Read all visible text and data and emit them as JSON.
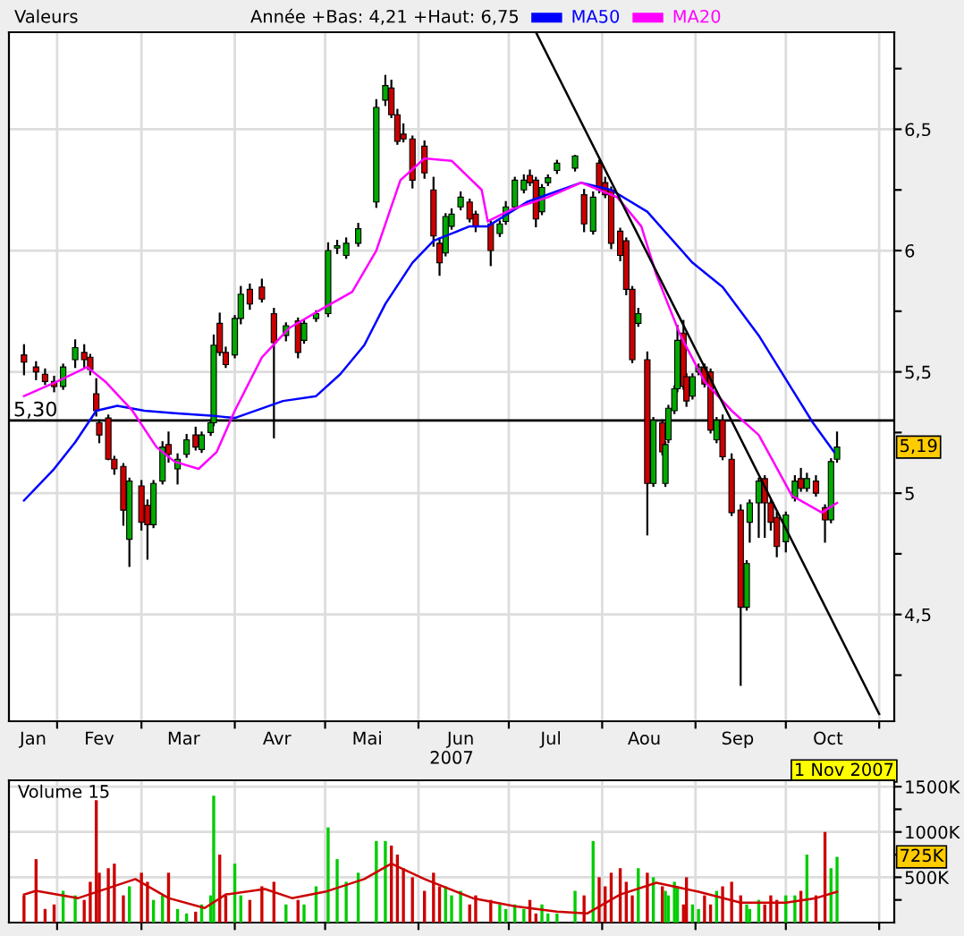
{
  "chart_data": [
    {
      "type": "candlestick",
      "title": "Valeurs",
      "subtitle": "Année +Bas: 4,21 +Haut: 6,75",
      "xlabel": "2007",
      "x": [
        "2007-01-21",
        "2007-01-25",
        "2007-01-28",
        "2007-01-31",
        "2007-02-03",
        "2007-02-07",
        "2007-02-10",
        "2007-02-12",
        "2007-02-14",
        "2007-02-15",
        "2007-02-18",
        "2007-02-20",
        "2007-02-23",
        "2007-02-25",
        "2007-03-01",
        "2007-03-03",
        "2007-03-05",
        "2007-03-08",
        "2007-03-10",
        "2007-03-13",
        "2007-03-16",
        "2007-03-19",
        "2007-03-21",
        "2007-03-24",
        "2007-03-25",
        "2007-03-27",
        "2007-03-29",
        "2007-04-01",
        "2007-04-03",
        "2007-04-06",
        "2007-04-10",
        "2007-04-14",
        "2007-04-18",
        "2007-04-22",
        "2007-04-24",
        "2007-04-28",
        "2007-05-02",
        "2007-05-05",
        "2007-05-08",
        "2007-05-12",
        "2007-05-18",
        "2007-05-21",
        "2007-05-23",
        "2007-05-25",
        "2007-05-27",
        "2007-05-30",
        "2007-06-03",
        "2007-06-06",
        "2007-06-08",
        "2007-06-10",
        "2007-06-12",
        "2007-06-15",
        "2007-06-18",
        "2007-06-20",
        "2007-06-25",
        "2007-06-28",
        "2007-06-30",
        "2007-07-03",
        "2007-07-06",
        "2007-07-08",
        "2007-07-10",
        "2007-07-12",
        "2007-07-14",
        "2007-07-17",
        "2007-07-23",
        "2007-07-26",
        "2007-07-29",
        "2007-07-31",
        "2007-08-02",
        "2007-08-04",
        "2007-08-07",
        "2007-08-09",
        "2007-08-11",
        "2007-08-13",
        "2007-08-16",
        "2007-08-18",
        "2007-08-21",
        "2007-08-22",
        "2007-08-23",
        "2007-08-25",
        "2007-08-26",
        "2007-08-28",
        "2007-08-29",
        "2007-08-31",
        "2007-09-02",
        "2007-09-04",
        "2007-09-06",
        "2007-09-08",
        "2007-09-10",
        "2007-09-13",
        "2007-09-16",
        "2007-09-18",
        "2007-09-19",
        "2007-09-22",
        "2007-09-24",
        "2007-09-26",
        "2007-09-28",
        "2007-10-01",
        "2007-10-04",
        "2007-10-06",
        "2007-10-08",
        "2007-10-11",
        "2007-10-14",
        "2007-10-16",
        "2007-10-18"
      ],
      "ohlc": [
        [
          5.57,
          5.61,
          5.49,
          5.54
        ],
        [
          5.52,
          5.54,
          5.47,
          5.5
        ],
        [
          5.49,
          5.51,
          5.45,
          5.46
        ],
        [
          5.46,
          5.48,
          5.42,
          5.44
        ],
        [
          5.44,
          5.53,
          5.43,
          5.52
        ],
        [
          5.55,
          5.63,
          5.52,
          5.6
        ],
        [
          5.58,
          5.61,
          5.52,
          5.55
        ],
        [
          5.56,
          5.57,
          5.49,
          5.51
        ],
        [
          5.41,
          5.47,
          5.32,
          5.34
        ],
        [
          5.29,
          5.3,
          5.21,
          5.24
        ],
        [
          5.31,
          5.32,
          5.14,
          5.14
        ],
        [
          5.14,
          5.15,
          5.08,
          5.1
        ],
        [
          5.11,
          5.12,
          4.87,
          4.93
        ],
        [
          4.81,
          5.06,
          4.7,
          5.05
        ],
        [
          5.03,
          5.05,
          4.85,
          4.88
        ],
        [
          4.95,
          4.97,
          4.73,
          4.87
        ],
        [
          4.87,
          5.05,
          4.86,
          5.04
        ],
        [
          5.05,
          5.21,
          5.04,
          5.19
        ],
        [
          5.2,
          5.25,
          5.13,
          5.16
        ],
        [
          5.1,
          5.16,
          5.04,
          5.14
        ],
        [
          5.16,
          5.24,
          5.15,
          5.22
        ],
        [
          5.24,
          5.27,
          5.18,
          5.19
        ],
        [
          5.18,
          5.25,
          5.17,
          5.24
        ],
        [
          5.25,
          5.3,
          5.24,
          5.29
        ],
        [
          5.29,
          5.65,
          5.28,
          5.61
        ],
        [
          5.7,
          5.74,
          5.57,
          5.58
        ],
        [
          5.58,
          5.6,
          5.52,
          5.53
        ],
        [
          5.57,
          5.73,
          5.56,
          5.72
        ],
        [
          5.72,
          5.85,
          5.7,
          5.82
        ],
        [
          5.84,
          5.86,
          5.76,
          5.78
        ],
        [
          5.85,
          5.88,
          5.79,
          5.8
        ],
        [
          5.74,
          5.76,
          5.23,
          5.62
        ],
        [
          5.65,
          5.7,
          5.63,
          5.69
        ],
        [
          5.71,
          5.72,
          5.56,
          5.58
        ],
        [
          5.63,
          5.71,
          5.62,
          5.7
        ],
        [
          5.72,
          5.75,
          5.71,
          5.74
        ],
        [
          5.74,
          6.03,
          5.73,
          6.0
        ],
        [
          6.01,
          6.04,
          5.99,
          6.02
        ],
        [
          5.98,
          6.05,
          5.97,
          6.03
        ],
        [
          6.03,
          6.11,
          6.02,
          6.09
        ],
        [
          6.2,
          6.62,
          6.18,
          6.59
        ],
        [
          6.62,
          6.72,
          6.6,
          6.68
        ],
        [
          6.67,
          6.7,
          6.55,
          6.56
        ],
        [
          6.56,
          6.58,
          6.44,
          6.45
        ],
        [
          6.48,
          6.52,
          6.45,
          6.46
        ],
        [
          6.46,
          6.47,
          6.26,
          6.29
        ],
        [
          6.43,
          6.45,
          6.3,
          6.32
        ],
        [
          6.25,
          6.3,
          6.02,
          6.06
        ],
        [
          6.03,
          6.05,
          5.9,
          5.95
        ],
        [
          5.99,
          6.15,
          5.98,
          6.14
        ],
        [
          6.1,
          6.17,
          6.09,
          6.15
        ],
        [
          6.18,
          6.24,
          6.17,
          6.22
        ],
        [
          6.2,
          6.21,
          6.12,
          6.13
        ],
        [
          6.15,
          6.16,
          6.08,
          6.1
        ],
        [
          6.11,
          6.12,
          5.94,
          6.0
        ],
        [
          6.07,
          6.12,
          6.06,
          6.11
        ],
        [
          6.12,
          6.2,
          6.11,
          6.18
        ],
        [
          6.18,
          6.3,
          6.17,
          6.29
        ],
        [
          6.25,
          6.31,
          6.24,
          6.29
        ],
        [
          6.31,
          6.33,
          6.27,
          6.28
        ],
        [
          6.29,
          6.3,
          6.1,
          6.13
        ],
        [
          6.16,
          6.27,
          6.15,
          6.26
        ],
        [
          6.28,
          6.31,
          6.27,
          6.3
        ],
        [
          6.33,
          6.37,
          6.32,
          6.36
        ],
        [
          6.34,
          6.39,
          6.33,
          6.39
        ],
        [
          6.23,
          6.25,
          6.08,
          6.11
        ],
        [
          6.08,
          6.24,
          6.07,
          6.22
        ],
        [
          6.36,
          6.37,
          6.24,
          6.25
        ],
        [
          6.28,
          6.3,
          6.22,
          6.23
        ],
        [
          6.25,
          6.26,
          6.01,
          6.03
        ],
        [
          6.08,
          6.09,
          5.96,
          5.98
        ],
        [
          6.04,
          6.05,
          5.82,
          5.84
        ],
        [
          5.84,
          5.85,
          5.54,
          5.55
        ],
        [
          5.7,
          5.76,
          5.69,
          5.74
        ],
        [
          5.55,
          5.58,
          4.83,
          5.04
        ],
        [
          5.04,
          5.31,
          5.03,
          5.3
        ],
        [
          5.29,
          5.3,
          5.16,
          5.17
        ],
        [
          5.04,
          5.21,
          5.03,
          5.2
        ],
        [
          5.22,
          5.36,
          5.21,
          5.35
        ],
        [
          5.34,
          5.44,
          5.33,
          5.43
        ],
        [
          5.43,
          5.69,
          5.42,
          5.63
        ],
        [
          5.66,
          5.71,
          5.43,
          5.44
        ],
        [
          5.48,
          5.49,
          5.36,
          5.38
        ],
        [
          5.4,
          5.49,
          5.39,
          5.48
        ],
        [
          5.5,
          5.53,
          5.49,
          5.52
        ],
        [
          5.52,
          5.53,
          5.44,
          5.45
        ],
        [
          5.5,
          5.51,
          5.25,
          5.26
        ],
        [
          5.22,
          5.31,
          5.21,
          5.3
        ],
        [
          5.3,
          5.32,
          5.14,
          5.15
        ],
        [
          5.14,
          5.16,
          4.91,
          4.92
        ],
        [
          4.93,
          4.95,
          4.21,
          4.53
        ],
        [
          4.53,
          4.72,
          4.52,
          4.71
        ],
        [
          4.88,
          4.97,
          4.8,
          4.96
        ],
        [
          4.96,
          5.06,
          4.82,
          5.05
        ],
        [
          5.06,
          5.07,
          4.82,
          4.96
        ],
        [
          4.96,
          4.97,
          4.85,
          4.88
        ],
        [
          4.9,
          4.92,
          4.74,
          4.78
        ],
        [
          4.8,
          4.92,
          4.76,
          4.91
        ],
        [
          4.98,
          5.07,
          4.97,
          5.05
        ],
        [
          5.06,
          5.1,
          5.01,
          5.02
        ],
        [
          5.02,
          5.08,
          5.01,
          5.06
        ],
        [
          5.05,
          5.07,
          4.99,
          5.0
        ],
        [
          4.94,
          4.95,
          4.8,
          4.89
        ],
        [
          4.89,
          5.14,
          4.88,
          5.13
        ],
        [
          5.14,
          5.25,
          5.13,
          5.19
        ]
      ],
      "colors": [
        "#cc0000",
        "#cc0000",
        "#cc0000",
        "#cc0000",
        "#00aa00",
        "#00aa00",
        "#cc0000",
        "#cc0000",
        "#cc0000",
        "#cc0000",
        "#cc0000",
        "#cc0000",
        "#cc0000",
        "#00aa00",
        "#cc0000",
        "#cc0000",
        "#00aa00",
        "#00aa00",
        "#cc0000",
        "#00aa00",
        "#00aa00",
        "#cc0000",
        "#00aa00",
        "#00aa00",
        "#00aa00",
        "#cc0000",
        "#cc0000",
        "#00aa00",
        "#00aa00",
        "#cc0000",
        "#cc0000",
        "#cc0000",
        "#00aa00",
        "#cc0000",
        "#00aa00",
        "#00aa00",
        "#00aa00",
        "#00aa00",
        "#00aa00",
        "#00aa00",
        "#00aa00",
        "#00aa00",
        "#cc0000",
        "#cc0000",
        "#cc0000",
        "#cc0000",
        "#cc0000",
        "#cc0000",
        "#cc0000",
        "#00aa00",
        "#00aa00",
        "#00aa00",
        "#cc0000",
        "#cc0000",
        "#cc0000",
        "#00aa00",
        "#00aa00",
        "#00aa00",
        "#00aa00",
        "#cc0000",
        "#cc0000",
        "#00aa00",
        "#00aa00",
        "#00aa00",
        "#00aa00",
        "#cc0000",
        "#00aa00",
        "#cc0000",
        "#cc0000",
        "#cc0000",
        "#cc0000",
        "#cc0000",
        "#cc0000",
        "#00aa00",
        "#cc0000",
        "#00aa00",
        "#cc0000",
        "#00aa00",
        "#00aa00",
        "#00aa00",
        "#00aa00",
        "#cc0000",
        "#cc0000",
        "#00aa00",
        "#00aa00",
        "#cc0000",
        "#cc0000",
        "#00aa00",
        "#cc0000",
        "#cc0000",
        "#cc0000",
        "#00aa00",
        "#00aa00",
        "#00aa00",
        "#cc0000",
        "#cc0000",
        "#cc0000",
        "#00aa00",
        "#00aa00",
        "#cc0000",
        "#00aa00",
        "#cc0000",
        "#cc0000",
        "#00aa00",
        "#00aa00"
      ],
      "series": [
        {
          "name": "MA50",
          "type": "line",
          "color": "#0000ff",
          "x": [
            "2007-01-21",
            "2007-01-31",
            "2007-02-07",
            "2007-02-14",
            "2007-02-21",
            "2007-03-02",
            "2007-03-12",
            "2007-03-24",
            "2007-04-01",
            "2007-04-17",
            "2007-04-28",
            "2007-05-06",
            "2007-05-14",
            "2007-05-21",
            "2007-05-30",
            "2007-06-06",
            "2007-06-18",
            "2007-06-24",
            "2007-07-07",
            "2007-07-25",
            "2007-08-04",
            "2007-08-16",
            "2007-08-31",
            "2007-09-10",
            "2007-09-22",
            "2007-10-03",
            "2007-10-10",
            "2007-10-17"
          ],
          "values": [
            4.97,
            5.1,
            5.21,
            5.34,
            5.36,
            5.34,
            5.33,
            5.32,
            5.31,
            5.38,
            5.4,
            5.49,
            5.61,
            5.78,
            5.95,
            6.04,
            6.1,
            6.1,
            6.2,
            6.28,
            6.25,
            6.16,
            5.95,
            5.85,
            5.65,
            5.43,
            5.29,
            5.17
          ]
        },
        {
          "name": "MA20",
          "type": "line",
          "color": "#ff00ff",
          "x": [
            "2007-01-21",
            "2007-02-01",
            "2007-02-11",
            "2007-02-17",
            "2007-02-26",
            "2007-03-06",
            "2007-03-12",
            "2007-03-20",
            "2007-03-26",
            "2007-04-01",
            "2007-04-10",
            "2007-04-19",
            "2007-04-30",
            "2007-05-10",
            "2007-05-18",
            "2007-05-26",
            "2007-06-03",
            "2007-06-12",
            "2007-06-22",
            "2007-06-24",
            "2007-07-02",
            "2007-07-14",
            "2007-07-25",
            "2007-08-06",
            "2007-08-14",
            "2007-08-19",
            "2007-08-27",
            "2007-09-04",
            "2007-09-13",
            "2007-09-22",
            "2007-10-03",
            "2007-10-13",
            "2007-10-18"
          ],
          "values": [
            5.4,
            5.46,
            5.52,
            5.46,
            5.34,
            5.19,
            5.13,
            5.1,
            5.17,
            5.34,
            5.56,
            5.68,
            5.76,
            5.83,
            6.0,
            6.29,
            6.38,
            6.37,
            6.25,
            6.12,
            6.17,
            6.22,
            6.28,
            6.22,
            6.1,
            5.9,
            5.65,
            5.46,
            5.34,
            5.24,
            4.99,
            4.92,
            4.96
          ]
        },
        {
          "type": "line",
          "color": "#000000",
          "x": [
            "2007-07-10",
            "2007-11-01"
          ],
          "values": [
            6.9,
            4.09
          ]
        }
      ],
      "ref_lines": [
        {
          "axis": "y",
          "value": 5.3,
          "label": "5,30",
          "color": "#000000"
        }
      ],
      "annotations": [
        {
          "text": "5,19",
          "y": 5.19
        },
        "1 Nov 2007"
      ],
      "xlim": [
        "2007-01-16",
        "2007-11-06"
      ],
      "xticks": [
        {
          "value": "2007-02-01",
          "label": null
        },
        {
          "value": "2007-03-01",
          "label": null
        },
        {
          "value": "2007-04-01",
          "label": null
        },
        {
          "value": "2007-05-01",
          "label": null
        },
        {
          "value": "2007-06-01",
          "label": null
        },
        {
          "value": "2007-07-01",
          "label": null
        },
        {
          "value": "2007-08-01",
          "label": null
        },
        {
          "value": "2007-09-01",
          "label": null
        },
        {
          "value": "2007-10-01",
          "label": null
        },
        {
          "value": "2007-11-01",
          "label": null
        },
        {
          "value": "2007-01-24",
          "label": "Jan"
        },
        {
          "value": "2007-02-15",
          "label": "Fev"
        },
        {
          "value": "2007-03-15",
          "label": "Mar"
        },
        {
          "value": "2007-04-15",
          "label": "Avr"
        },
        {
          "value": "2007-05-15",
          "label": "Mai"
        },
        {
          "value": "2007-06-15",
          "label": "Jun"
        },
        {
          "value": "2007-07-15",
          "label": "Jul"
        },
        {
          "value": "2007-08-15",
          "label": "Aou"
        },
        {
          "value": "2007-09-15",
          "label": "Sep"
        },
        {
          "value": "2007-10-15",
          "label": "Oct"
        }
      ],
      "ylim": [
        4.06,
        6.9
      ],
      "yticks": [
        {
          "value": 4.25,
          "label": null
        },
        {
          "value": 4.5,
          "label": "4,5"
        },
        {
          "value": 4.75,
          "label": null
        },
        {
          "value": 5,
          "label": "5"
        },
        {
          "value": 5.25,
          "label": null
        },
        {
          "value": 5.5,
          "label": "5,5"
        },
        {
          "value": 5.75,
          "label": null
        },
        {
          "value": 6,
          "label": "6"
        },
        {
          "value": 6.25,
          "label": null
        },
        {
          "value": 6.5,
          "label": "6,5"
        },
        {
          "value": 6.75,
          "label": null
        }
      ],
      "grid": true,
      "legend": "top"
    },
    {
      "type": "bar",
      "title": "Volume 15",
      "x": [
        "2007-01-21",
        "2007-01-25",
        "2007-01-28",
        "2007-01-31",
        "2007-02-03",
        "2007-02-07",
        "2007-02-10",
        "2007-02-12",
        "2007-02-14",
        "2007-02-15",
        "2007-02-18",
        "2007-02-20",
        "2007-02-23",
        "2007-02-25",
        "2007-03-01",
        "2007-03-03",
        "2007-03-05",
        "2007-03-08",
        "2007-03-10",
        "2007-03-13",
        "2007-03-16",
        "2007-03-19",
        "2007-03-21",
        "2007-03-24",
        "2007-03-25",
        "2007-03-27",
        "2007-03-29",
        "2007-04-01",
        "2007-04-03",
        "2007-04-06",
        "2007-04-10",
        "2007-04-14",
        "2007-04-18",
        "2007-04-22",
        "2007-04-24",
        "2007-04-28",
        "2007-05-02",
        "2007-05-05",
        "2007-05-08",
        "2007-05-12",
        "2007-05-18",
        "2007-05-21",
        "2007-05-23",
        "2007-05-25",
        "2007-05-27",
        "2007-05-30",
        "2007-06-03",
        "2007-06-06",
        "2007-06-08",
        "2007-06-10",
        "2007-06-12",
        "2007-06-15",
        "2007-06-18",
        "2007-06-20",
        "2007-06-25",
        "2007-06-28",
        "2007-06-30",
        "2007-07-03",
        "2007-07-06",
        "2007-07-08",
        "2007-07-10",
        "2007-07-12",
        "2007-07-14",
        "2007-07-17",
        "2007-07-23",
        "2007-07-26",
        "2007-07-29",
        "2007-07-31",
        "2007-08-02",
        "2007-08-04",
        "2007-08-07",
        "2007-08-09",
        "2007-08-11",
        "2007-08-13",
        "2007-08-16",
        "2007-08-18",
        "2007-08-21",
        "2007-08-22",
        "2007-08-23",
        "2007-08-25",
        "2007-08-26",
        "2007-08-28",
        "2007-08-29",
        "2007-08-31",
        "2007-09-02",
        "2007-09-04",
        "2007-09-06",
        "2007-09-08",
        "2007-09-10",
        "2007-09-13",
        "2007-09-16",
        "2007-09-18",
        "2007-09-19",
        "2007-09-22",
        "2007-09-24",
        "2007-09-26",
        "2007-09-28",
        "2007-10-01",
        "2007-10-04",
        "2007-10-06",
        "2007-10-08",
        "2007-10-11",
        "2007-10-14",
        "2007-10-16",
        "2007-10-18"
      ],
      "values": [
        300000,
        700000,
        150000,
        200000,
        350000,
        300000,
        250000,
        450000,
        1350000,
        550000,
        600000,
        650000,
        300000,
        400000,
        550000,
        450000,
        250000,
        300000,
        550000,
        150000,
        100000,
        120000,
        200000,
        300000,
        1400000,
        750000,
        300000,
        650000,
        300000,
        250000,
        400000,
        450000,
        200000,
        250000,
        200000,
        400000,
        1050000,
        700000,
        450000,
        550000,
        900000,
        900000,
        850000,
        750000,
        600000,
        500000,
        350000,
        550000,
        400000,
        400000,
        300000,
        350000,
        200000,
        300000,
        250000,
        200000,
        150000,
        200000,
        150000,
        250000,
        100000,
        200000,
        100000,
        100000,
        350000,
        300000,
        900000,
        500000,
        400000,
        550000,
        600000,
        450000,
        300000,
        600000,
        550000,
        500000,
        400000,
        350000,
        300000,
        450000,
        400000,
        200000,
        500000,
        200000,
        150000,
        300000,
        200000,
        350000,
        400000,
        450000,
        300000,
        200000,
        150000,
        250000,
        200000,
        300000,
        250000,
        300000,
        300000,
        350000,
        750000,
        300000,
        1000000,
        600000,
        725000
      ],
      "colors": [
        "#cc0000",
        "#cc0000",
        "#cc0000",
        "#cc0000",
        "#00cc00",
        "#00cc00",
        "#cc0000",
        "#cc0000",
        "#cc0000",
        "#cc0000",
        "#cc0000",
        "#cc0000",
        "#cc0000",
        "#00cc00",
        "#cc0000",
        "#cc0000",
        "#00cc00",
        "#00cc00",
        "#cc0000",
        "#00cc00",
        "#00cc00",
        "#cc0000",
        "#00cc00",
        "#00cc00",
        "#00cc00",
        "#cc0000",
        "#cc0000",
        "#00cc00",
        "#00cc00",
        "#cc0000",
        "#cc0000",
        "#cc0000",
        "#00cc00",
        "#cc0000",
        "#00cc00",
        "#00cc00",
        "#00cc00",
        "#00cc00",
        "#00cc00",
        "#00cc00",
        "#00cc00",
        "#00cc00",
        "#cc0000",
        "#cc0000",
        "#cc0000",
        "#cc0000",
        "#cc0000",
        "#cc0000",
        "#cc0000",
        "#00cc00",
        "#00cc00",
        "#00cc00",
        "#cc0000",
        "#cc0000",
        "#cc0000",
        "#00cc00",
        "#00cc00",
        "#00cc00",
        "#00cc00",
        "#cc0000",
        "#cc0000",
        "#00cc00",
        "#00cc00",
        "#00cc00",
        "#00cc00",
        "#cc0000",
        "#00cc00",
        "#cc0000",
        "#cc0000",
        "#cc0000",
        "#cc0000",
        "#cc0000",
        "#cc0000",
        "#00cc00",
        "#cc0000",
        "#00cc00",
        "#cc0000",
        "#00cc00",
        "#00cc00",
        "#00cc00",
        "#00cc00",
        "#cc0000",
        "#cc0000",
        "#00cc00",
        "#00cc00",
        "#cc0000",
        "#cc0000",
        "#00cc00",
        "#cc0000",
        "#cc0000",
        "#cc0000",
        "#00cc00",
        "#00cc00",
        "#00cc00",
        "#cc0000",
        "#cc0000",
        "#cc0000",
        "#00cc00",
        "#00cc00",
        "#cc0000",
        "#00cc00",
        "#cc0000",
        "#cc0000",
        "#00cc00",
        "#00cc00"
      ],
      "series": [
        {
          "type": "line",
          "color": "#cc0000",
          "x": [
            "2007-01-21",
            "2007-01-25",
            "2007-02-08",
            "2007-02-27",
            "2007-03-10",
            "2007-03-22",
            "2007-03-29",
            "2007-04-11",
            "2007-04-20",
            "2007-05-01",
            "2007-05-14",
            "2007-05-23",
            "2007-06-03",
            "2007-06-19",
            "2007-07-03",
            "2007-07-17",
            "2007-07-27",
            "2007-08-07",
            "2007-08-19",
            "2007-09-02",
            "2007-09-16",
            "2007-10-01",
            "2007-10-11",
            "2007-10-18"
          ],
          "values": [
            310000,
            350000,
            270000,
            480000,
            270000,
            160000,
            310000,
            370000,
            270000,
            340000,
            480000,
            650000,
            480000,
            270000,
            180000,
            120000,
            100000,
            310000,
            440000,
            340000,
            220000,
            220000,
            270000,
            340000
          ]
        }
      ],
      "annotations": [
        {
          "text": "725K",
          "y": 725000
        }
      ],
      "xlim": [
        "2007-01-16",
        "2007-11-06"
      ],
      "xticks": [
        {
          "value": "2007-02-01",
          "label": null
        },
        {
          "value": "2007-03-01",
          "label": null
        },
        {
          "value": "2007-04-01",
          "label": null
        },
        {
          "value": "2007-05-01",
          "label": null
        },
        {
          "value": "2007-06-01",
          "label": null
        },
        {
          "value": "2007-07-01",
          "label": null
        },
        {
          "value": "2007-08-01",
          "label": null
        },
        {
          "value": "2007-09-01",
          "label": null
        },
        {
          "value": "2007-10-01",
          "label": null
        },
        {
          "value": "2007-11-01",
          "label": null
        }
      ],
      "ylim": [
        0,
        1570000
      ],
      "yticks": [
        {
          "value": 250000,
          "label": null
        },
        {
          "value": 500000,
          "label": "500K"
        },
        {
          "value": 750000,
          "label": null
        },
        {
          "value": 1000000,
          "label": "1000K"
        },
        {
          "value": 1250000,
          "label": null
        },
        {
          "value": 1500000,
          "label": "1500K"
        }
      ],
      "grid": true,
      "tick_labels": "y"
    }
  ]
}
